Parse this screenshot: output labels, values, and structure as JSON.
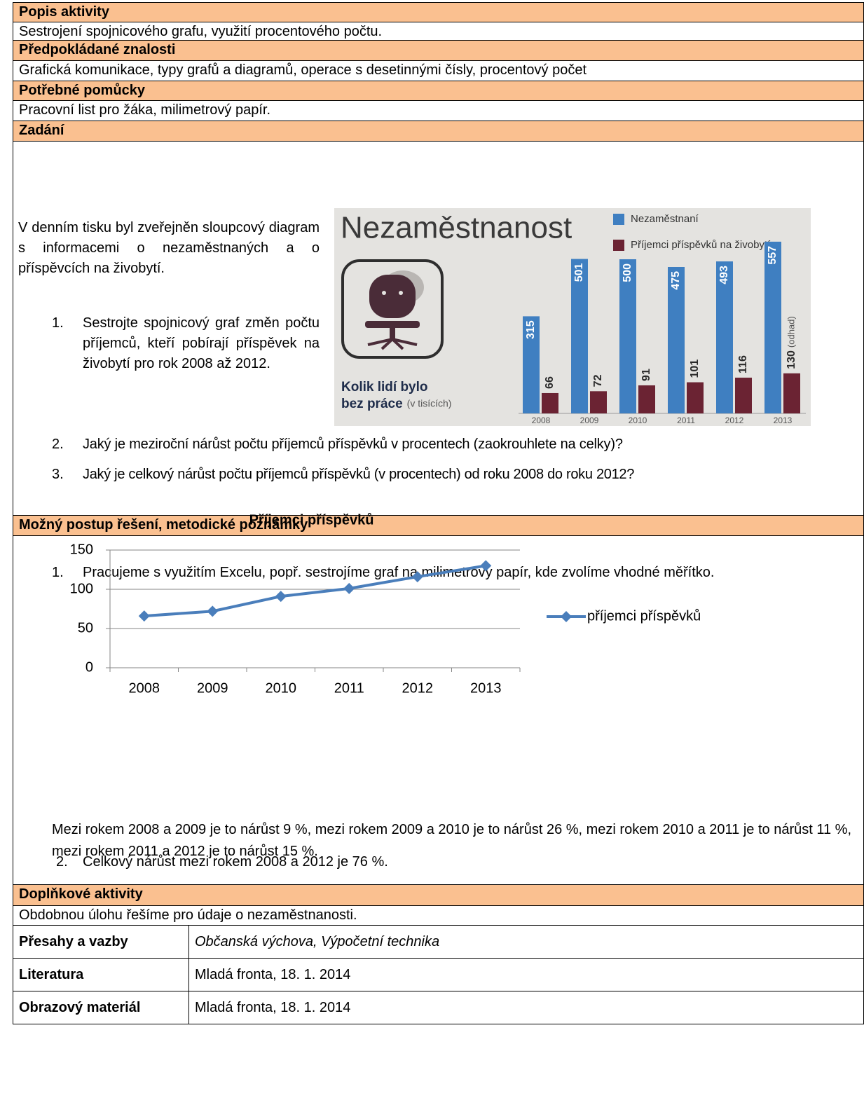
{
  "popis": {
    "heading": "Popis aktivity",
    "text": "Sestrojení spojnicového grafu, využití procentového počtu."
  },
  "znalosti": {
    "heading": "Předpokládané znalosti",
    "text": "Grafická komunikace, typy grafů a diagramů, operace s desetinnými čísly, procentový počet"
  },
  "pomucky": {
    "heading": "Potřebné pomůcky",
    "text": "Pracovní list pro žáka, milimetrový papír."
  },
  "zadani": {
    "heading": "Zadání",
    "intro": "V denním tisku byl zveřejněn sloupcový diagram s informacemi o nezaměstnaných a o příspěvcích na živobytí.",
    "tasks": [
      {
        "number": "1.",
        "text": "Sestrojte spojnicový graf změn počtu příjemců, kteří pobírají příspěvek na živobytí pro rok 2008 až 2012."
      },
      {
        "number": "2.",
        "text": "Jaký je meziroční nárůst počtu příjemců příspěvků v procentech (zaokrouhlete na celky)?"
      },
      {
        "number": "3.",
        "text": "Jaký je celkový nárůst počtu příjemců příspěvků (v procentech) od roku 2008 do roku 2012?"
      }
    ]
  },
  "postup": {
    "heading": "Možný postup řešení, metodické poznámky",
    "step1": {
      "number": "1.",
      "text": "Pracujeme s využitím Excelu, popř. sestrojíme graf na milimetrový papír, kde zvolíme vhodné měřítko."
    },
    "result": "Mezi rokem 2008 a 2009 je to nárůst 9 %, mezi rokem 2009 a 2010 je to nárůst 26 %, mezi rokem 2010 a 2011 je to nárůst 11 %, mezi rokem 2011 a 2012 je to nárůst 15 %.",
    "step2": {
      "number": "2.",
      "text": "Celkový nárůst mezi rokem 2008 a 2012 je 76 %."
    }
  },
  "doplnkove": {
    "heading": "Doplňkové aktivity",
    "text": "Obdobnou úlohu řešíme pro údaje o nezaměstnanosti."
  },
  "info_table": {
    "rows": [
      [
        "Přesahy a vazby",
        "Občanská výchova, Výpočetní technika"
      ],
      [
        "Literatura",
        "Mladá fronta, 18. 1. 2014"
      ],
      [
        "Obrazový materiál",
        "Mladá fronta, 18. 1. 2014"
      ]
    ]
  },
  "chart_data": [
    {
      "type": "bar",
      "title": "Nezaměstnanost",
      "subtitle": [
        "Kolik lidí bylo",
        "bez práce"
      ],
      "subtitle_note": "(v tisících)",
      "categories": [
        "2008",
        "2009",
        "2010",
        "2011",
        "2012",
        "2013"
      ],
      "series": [
        {
          "name": "Nezaměstnaní",
          "color": "#3f7fc1",
          "values": [
            315,
            501,
            500,
            475,
            493,
            557
          ]
        },
        {
          "name": "Příjemci příspěvků na živobytí",
          "color": "#6b2333",
          "values": [
            66,
            72,
            91,
            101,
            116,
            130
          ]
        }
      ],
      "annotation": "(odhad)"
    },
    {
      "type": "line",
      "title": "Příjemci příspěvků",
      "categories": [
        "2008",
        "2009",
        "2010",
        "2011",
        "2012",
        "2013"
      ],
      "series": [
        {
          "name": "příjemci příspěvků",
          "color": "#4a7ebb",
          "values": [
            66,
            72,
            91,
            101,
            116,
            130
          ]
        }
      ],
      "ylim": [
        0,
        150
      ],
      "yticks": [
        0,
        50,
        100,
        150
      ],
      "grid": true,
      "legend": "right"
    }
  ]
}
